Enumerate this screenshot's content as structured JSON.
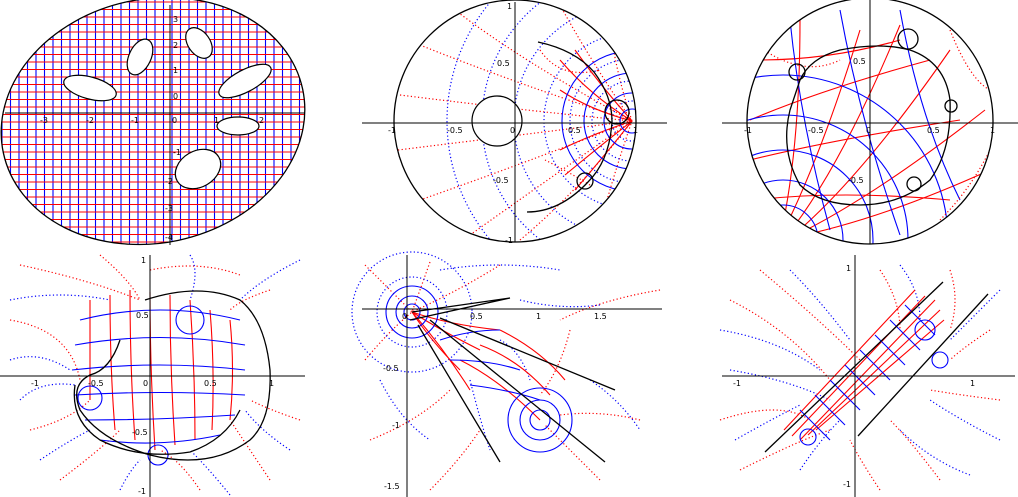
{
  "panels": [
    {
      "id": "ellipse-domain",
      "x_ticks": [
        "-3",
        "-2",
        "-1",
        "0",
        "1",
        "2"
      ],
      "y_ticks": [
        "3",
        "2",
        "1",
        "0",
        "-1",
        "-2",
        "-3",
        "-4"
      ]
    },
    {
      "id": "disk-annulus",
      "x_ticks": [
        "-1",
        "-0.5",
        "0",
        "0.5",
        "1"
      ],
      "y_ticks": [
        "1",
        "0.5",
        "-0.5",
        "-1"
      ]
    },
    {
      "id": "disk-curvy",
      "x_ticks": [
        "-1",
        "-0.5",
        "0",
        "0.5",
        "1"
      ],
      "y_ticks": [
        "0.5",
        "-0.5"
      ]
    },
    {
      "id": "bean-domain",
      "x_ticks": [
        "-1",
        "-0.5",
        "0",
        "0.5",
        "1"
      ],
      "y_ticks": [
        "1",
        "0.5",
        "-0.5",
        "-1"
      ]
    },
    {
      "id": "slit-domain",
      "x_ticks": [
        "0",
        "0.5",
        "1",
        "1.5"
      ],
      "y_ticks": [
        "-0.5",
        "-1",
        "-1.5"
      ]
    },
    {
      "id": "strip-domain",
      "x_ticks": [
        "-1",
        "1"
      ],
      "y_ticks": [
        "1",
        "-1"
      ]
    }
  ],
  "colors": {
    "grid_red": "#ff0000",
    "grid_blue": "#0000ff",
    "boundary": "#000000"
  }
}
